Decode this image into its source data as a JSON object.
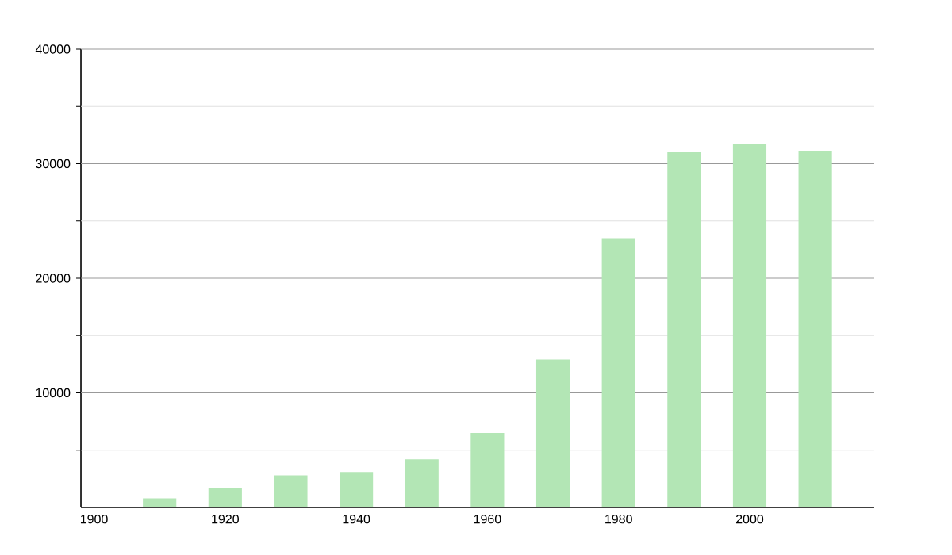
{
  "chart_data": {
    "type": "bar",
    "x": [
      1910,
      1920,
      1930,
      1940,
      1950,
      1960,
      1970,
      1980,
      1990,
      2000,
      2010
    ],
    "values": [
      800,
      1700,
      2800,
      3100,
      4200,
      6500,
      12900,
      23500,
      31000,
      31700,
      31100
    ],
    "color": "#b3e6b5",
    "xlim": [
      1898,
      2019
    ],
    "xticks": [
      1900,
      1920,
      1940,
      1960,
      1980,
      2000
    ],
    "ylim": [
      0,
      40000
    ],
    "yticks": [
      {
        "value": 5000,
        "label": null
      },
      10000,
      {
        "value": 15000,
        "label": null
      },
      20000,
      {
        "value": 25000,
        "label": null
      },
      30000,
      {
        "value": 35000,
        "label": null
      },
      40000
    ],
    "grid": "y"
  }
}
